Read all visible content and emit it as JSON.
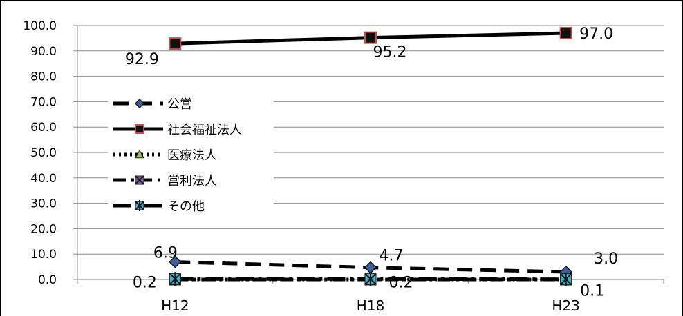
{
  "chart_data": {
    "type": "line",
    "categories": [
      "H12",
      "H18",
      "H23"
    ],
    "ylim": [
      0,
      100
    ],
    "yticks": [
      "0.0",
      "10.0",
      "20.0",
      "30.0",
      "40.0",
      "50.0",
      "60.0",
      "70.0",
      "80.0",
      "90.0",
      "100.0"
    ],
    "grid": true,
    "legend_position": "left",
    "series": [
      {
        "name": "公営",
        "values": [
          6.9,
          4.7,
          3.0
        ],
        "labels": [
          "6.9",
          "4.7",
          "3.0"
        ],
        "color": "#000000",
        "marker": "diamond",
        "marker_fill": "#3f5f9f",
        "dash": "dash"
      },
      {
        "name": "社会福祉法人",
        "values": [
          92.9,
          95.2,
          97.0
        ],
        "labels": [
          "92.9",
          "95.2",
          "97.0"
        ],
        "color": "#000000",
        "marker": "square",
        "marker_fill": "#111111",
        "marker_edge": "#c0504d",
        "dash": "solid"
      },
      {
        "name": "医療法人",
        "values": [
          0.0,
          0.0,
          0.0
        ],
        "labels": [],
        "color": "#000000",
        "marker": "triangle",
        "marker_fill": "#9bbb59",
        "dash": "dot"
      },
      {
        "name": "営利法人",
        "values": [
          0.0,
          0.0,
          0.0
        ],
        "labels": [],
        "color": "#000000",
        "marker": "x",
        "marker_fill": "#8064a2",
        "dash": "dashdot"
      },
      {
        "name": "その他",
        "values": [
          0.2,
          0.2,
          0.1
        ],
        "labels": [
          "0.2",
          "0.2",
          "0.1"
        ],
        "color": "#000000",
        "marker": "star",
        "marker_fill": "#4bacc6",
        "dash": "longdashdot"
      }
    ]
  }
}
